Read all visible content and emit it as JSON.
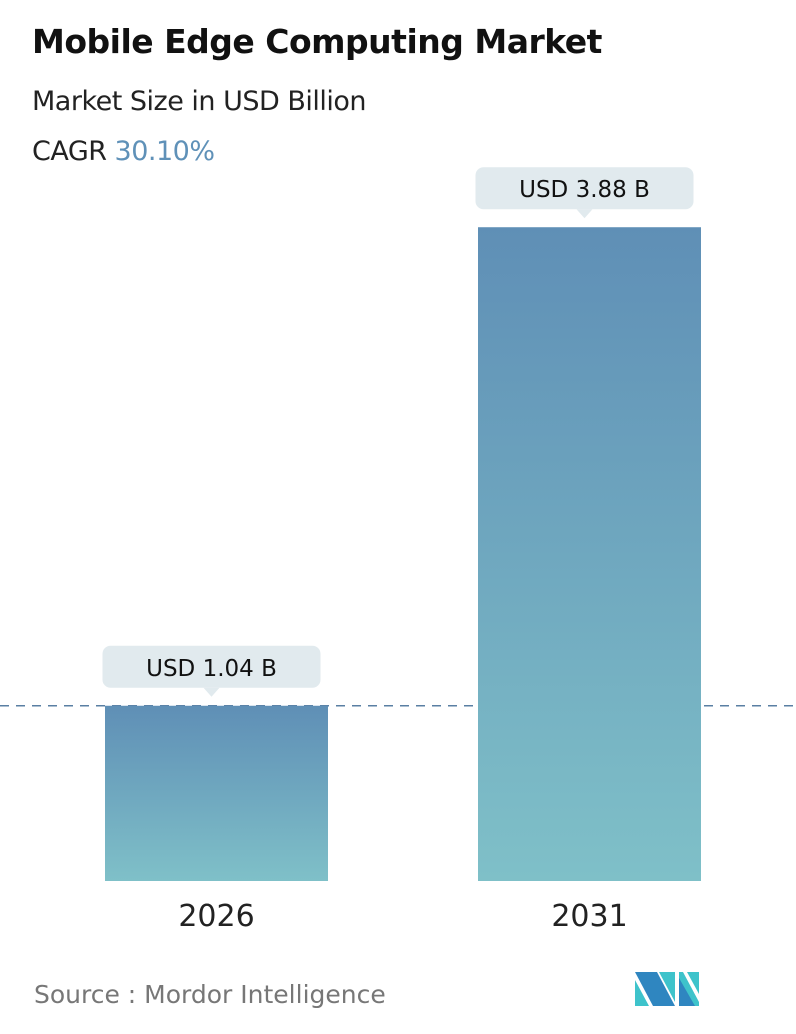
{
  "header": {
    "title": "Mobile Edge Computing Market",
    "subtitle": "Market Size in USD Billion",
    "cagr_label": "CAGR",
    "cagr_value": "30.10%"
  },
  "chart_data": {
    "type": "bar",
    "categories": [
      "2026",
      "2031"
    ],
    "values": [
      1.04,
      3.88
    ],
    "data_labels": [
      "USD 1.04 B",
      "USD 3.88 B"
    ],
    "unit": "USD Billion",
    "reference_line": {
      "value": 1.04,
      "style": "dashed"
    },
    "grid": false,
    "colors": {
      "bar_top": "#5f8fb6",
      "bar_bottom": "#7fc0c8",
      "callout": "#e1eaee",
      "dash": "#5a7fa3",
      "cagr": "#5f91b8"
    }
  },
  "footer": {
    "source": "Source :  Mordor Intelligence",
    "logo": "Mordor Intelligence logo"
  }
}
